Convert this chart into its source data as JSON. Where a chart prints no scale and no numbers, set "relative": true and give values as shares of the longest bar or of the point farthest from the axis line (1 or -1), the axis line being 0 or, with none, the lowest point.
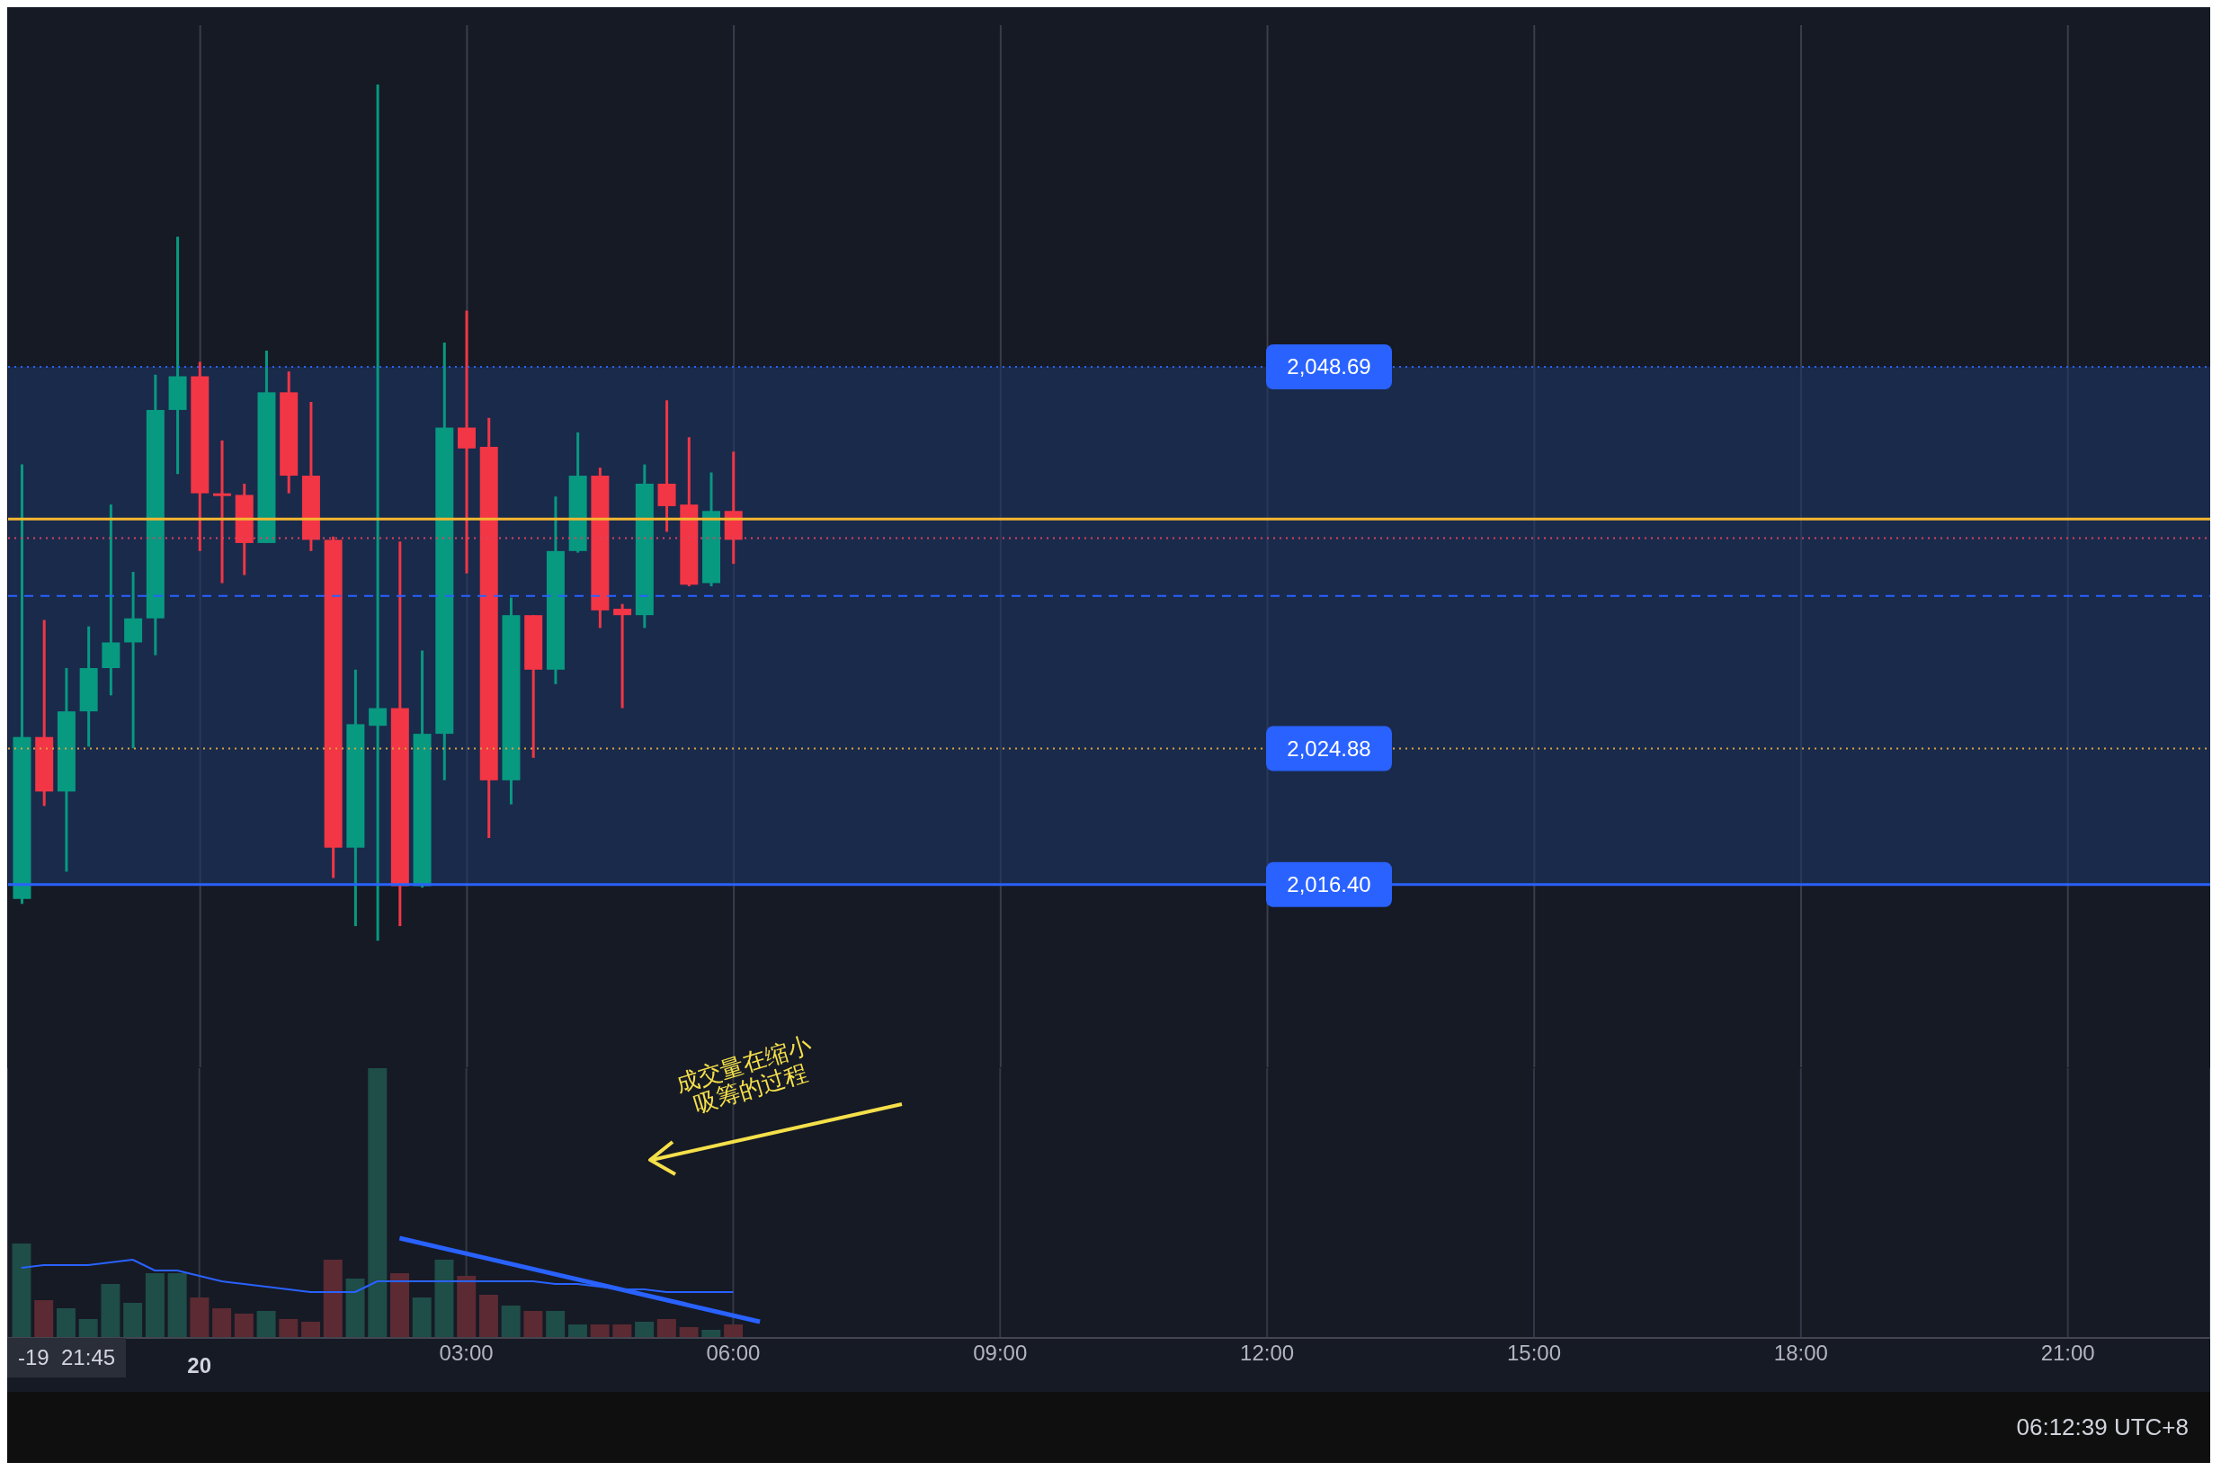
{
  "chart_data": [
    {
      "type": "candlestick",
      "x": [
        -2,
        -1.75,
        -1.5,
        -1.25,
        -1,
        -0.75,
        -0.5,
        -0.25,
        0,
        0.25,
        0.5,
        0.75,
        1,
        1.25,
        1.5,
        1.75,
        2,
        2.25,
        2.5,
        2.75,
        3,
        3.25,
        3.5,
        3.75,
        4,
        4.25,
        4.5,
        4.75,
        5,
        5.25,
        5.5,
        5.75,
        6
      ],
      "ohlc": [
        [
          2015.5,
          2042.6,
          2015.2,
          2025.6
        ],
        [
          2025.6,
          2032.9,
          2021.3,
          2022.2
        ],
        [
          2022.2,
          2029.9,
          2017.2,
          2027.2
        ],
        [
          2027.2,
          2032.5,
          2025.0,
          2029.9
        ],
        [
          2029.9,
          2040.1,
          2028.2,
          2031.5
        ],
        [
          2031.5,
          2035.9,
          2024.9,
          2033.0
        ],
        [
          2033.0,
          2048.2,
          2030.7,
          2046.0
        ],
        [
          2046.0,
          2056.8,
          2042.0,
          2048.1
        ],
        [
          2048.1,
          2049.0,
          2037.2,
          2040.8
        ],
        [
          2040.8,
          2044.1,
          2035.2,
          2040.7
        ],
        [
          2040.7,
          2041.4,
          2035.7,
          2037.7
        ],
        [
          2037.7,
          2049.7,
          2037.7,
          2047.1
        ],
        [
          2047.1,
          2048.4,
          2040.8,
          2041.9
        ],
        [
          2041.9,
          2046.5,
          2037.2,
          2037.9
        ],
        [
          2037.9,
          2038.1,
          2016.8,
          2018.7
        ],
        [
          2018.7,
          2029.8,
          2013.8,
          2026.4
        ],
        [
          2026.3,
          2066.3,
          2012.9,
          2027.4
        ],
        [
          2027.4,
          2037.8,
          2013.8,
          2016.3
        ],
        [
          2016.3,
          2031.0,
          2016.2,
          2025.8
        ],
        [
          2025.8,
          2050.2,
          2022.9,
          2044.9
        ],
        [
          2044.9,
          2052.2,
          2035.8,
          2043.6
        ],
        [
          2043.7,
          2045.5,
          2019.3,
          2022.9
        ],
        [
          2022.9,
          2034.3,
          2021.4,
          2033.2
        ],
        [
          2033.2,
          2033.2,
          2024.3,
          2029.8
        ],
        [
          2029.8,
          2040.6,
          2028.9,
          2037.2
        ],
        [
          2037.2,
          2044.6,
          2037.1,
          2041.9
        ],
        [
          2041.9,
          2042.4,
          2032.4,
          2033.5
        ],
        [
          2033.6,
          2033.9,
          2027.4,
          2033.2
        ],
        [
          2033.2,
          2042.6,
          2032.4,
          2041.4
        ],
        [
          2041.4,
          2046.6,
          2038.4,
          2040.0
        ],
        [
          2040.1,
          2044.3,
          2035.0,
          2035.1
        ],
        [
          2035.2,
          2042.1,
          2035.0,
          2039.7
        ],
        [
          2039.7,
          2043.4,
          2036.4,
          2037.9
        ]
      ],
      "colors": [
        "#089981",
        "#f23645",
        "#089981",
        "#089981",
        "#089981",
        "#089981",
        "#089981",
        "#089981",
        "#f23645",
        "#f23645",
        "#f23645",
        "#089981",
        "#f23645",
        "#f23645",
        "#f23645",
        "#089981",
        "#089981",
        "#f23645",
        "#089981",
        "#089981",
        "#f23645",
        "#f23645",
        "#089981",
        "#f23645",
        "#089981",
        "#089981",
        "#f23645",
        "#f23645",
        "#089981",
        "#f23645",
        "#f23645",
        "#089981",
        "#f23645"
      ],
      "xlim": [
        -2.16,
        22.6
      ],
      "xticks": [
        0,
        3,
        6,
        9,
        12,
        15,
        18,
        21
      ],
      "ylim": [
        2005,
        2070
      ],
      "yticks": [
        {
          "value": 2016.4,
          "label": "2,016.40"
        },
        {
          "value": 2024.88,
          "label": "2,024.88"
        },
        {
          "value": 2048.69,
          "label": "2,048.69"
        }
      ],
      "tick_labels": "y",
      "grid": "x",
      "legend": false,
      "bands": [
        {
          "axis": "y",
          "from": 2016.4,
          "to": 2048.69,
          "color": "#1e3566"
        }
      ],
      "ref_lines": [
        {
          "axis": "y",
          "value": 2048.69,
          "color": "#2962ff",
          "line_style": "dotted"
        },
        {
          "axis": "y",
          "value": 2016.4,
          "color": "#2962ff",
          "line_style": "solid"
        },
        {
          "axis": "y",
          "value": 2024.88,
          "color": "#d9a441",
          "line_style": "dotted"
        },
        {
          "axis": "y",
          "value": 2039.2,
          "color": "#f7b731",
          "line_style": "solid"
        },
        {
          "axis": "y",
          "value": 2038.0,
          "color": "#e0405e",
          "line_style": "dotted"
        },
        {
          "axis": "y",
          "value": 2034.4,
          "color": "#2962ff",
          "line_style": "dashed"
        }
      ]
    },
    {
      "type": "bar",
      "relative": true,
      "x": [
        -2,
        -1.75,
        -1.5,
        -1.25,
        -1,
        -0.75,
        -0.5,
        -0.25,
        0,
        0.25,
        0.5,
        0.75,
        1,
        1.25,
        1.5,
        1.75,
        2,
        2.25,
        2.5,
        2.75,
        3,
        3.25,
        3.5,
        3.75,
        4,
        4.25,
        4.5,
        4.75,
        5,
        5.25,
        5.5,
        5.75,
        6
      ],
      "series": [
        {
          "type": "bar",
          "values": [
            0.35,
            0.14,
            0.11,
            0.07,
            0.2,
            0.13,
            0.24,
            0.24,
            0.15,
            0.11,
            0.09,
            0.1,
            0.07,
            0.06,
            0.29,
            0.22,
            1,
            0.24,
            0.15,
            0.29,
            0.23,
            0.16,
            0.12,
            0.1,
            0.1,
            0.05,
            0.05,
            0.05,
            0.06,
            0.07,
            0.04,
            0.03,
            0.05
          ],
          "colors": [
            "#1f4d48",
            "#5c2a32",
            "#1f4d48",
            "#1f4d48",
            "#1f4d48",
            "#1f4d48",
            "#1f4d48",
            "#1f4d48",
            "#5c2a32",
            "#5c2a32",
            "#5c2a32",
            "#1f4d48",
            "#5c2a32",
            "#5c2a32",
            "#5c2a32",
            "#1f4d48",
            "#1f4d48",
            "#5c2a32",
            "#1f4d48",
            "#1f4d48",
            "#5c2a32",
            "#5c2a32",
            "#1f4d48",
            "#5c2a32",
            "#1f4d48",
            "#1f4d48",
            "#5c2a32",
            "#5c2a32",
            "#1f4d48",
            "#5c2a32",
            "#5c2a32",
            "#1f4d48",
            "#5c2a32"
          ]
        },
        {
          "type": "line",
          "color": "#2962ff",
          "values": [
            0.26,
            0.27,
            0.27,
            0.27,
            0.28,
            0.29,
            0.25,
            0.25,
            0.23,
            0.21,
            0.2,
            0.19,
            0.18,
            0.17,
            0.17,
            0.17,
            0.21,
            0.21,
            0.21,
            0.21,
            0.21,
            0.21,
            0.21,
            0.21,
            0.2,
            0.2,
            0.19,
            0.18,
            0.18,
            0.17,
            0.17,
            0.17,
            0.17
          ]
        },
        {
          "type": "line",
          "color": "#2962ff",
          "x": [
            2.25,
            6.3
          ],
          "values": [
            0.37,
            0.06
          ]
        }
      ],
      "xlim": [
        -2.16,
        22.6
      ],
      "xticks": [
        {
          "value": 0,
          "label": null
        },
        {
          "value": 3,
          "label": "03:00"
        },
        {
          "value": 6,
          "label": "06:00"
        },
        {
          "value": 9,
          "label": "09:00"
        },
        {
          "value": 12,
          "label": "12:00"
        },
        {
          "value": 15,
          "label": "15:00"
        },
        {
          "value": 18,
          "label": "18:00"
        },
        {
          "value": 21,
          "label": "21:00"
        }
      ],
      "tick_labels": "x",
      "grid": "x",
      "legend": false,
      "annotations": [
        "成交量在缩小",
        "吸筹的过程",
        "-19  21:45",
        "06:12:39 UTC+8",
        "20"
      ]
    }
  ]
}
